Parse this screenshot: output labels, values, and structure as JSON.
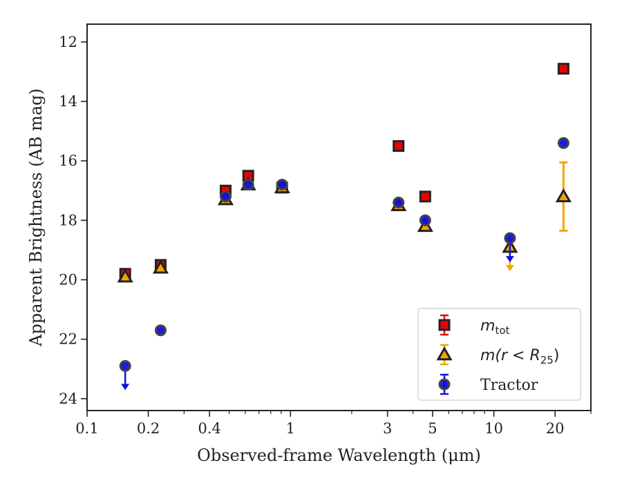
{
  "chart_data": {
    "type": "scatter",
    "xlabel": "Observed-frame Wavelength (μm)",
    "ylabel": "Apparent Brightness (AB mag)",
    "xscale": "log",
    "xlim": [
      0.1,
      30
    ],
    "ylim": [
      24.4,
      11.4
    ],
    "y_inverted": true,
    "grid": false,
    "legend_position": "lower-right",
    "x_ticks": [
      0.1,
      0.2,
      0.4,
      1,
      3,
      5,
      10,
      20
    ],
    "x_tick_labels": [
      "0.1",
      "0.2",
      "0.4",
      "1",
      "3",
      "5",
      "10",
      "20"
    ],
    "y_ticks": [
      12,
      14,
      16,
      18,
      20,
      22,
      24
    ],
    "y_tick_labels": [
      "12",
      "14",
      "16",
      "18",
      "20",
      "22",
      "24"
    ],
    "series": [
      {
        "name": "m_tot",
        "legend_main": "m",
        "legend_sub": "tot",
        "marker": "square",
        "color": "#ee0000",
        "edge": "#222222",
        "points": [
          {
            "x": 0.154,
            "y": 19.8
          },
          {
            "x": 0.23,
            "y": 19.5
          },
          {
            "x": 0.48,
            "y": 17.0
          },
          {
            "x": 0.62,
            "y": 16.5
          },
          {
            "x": 0.91,
            "y": 16.9
          },
          {
            "x": 3.4,
            "y": 15.5
          },
          {
            "x": 4.6,
            "y": 17.2
          },
          {
            "x": 22.0,
            "y": 12.9
          }
        ]
      },
      {
        "name": "m(r < R25)",
        "legend_main": "m(r < R",
        "legend_sub": "25",
        "legend_close": ")",
        "marker": "triangle",
        "color": "#f5a300",
        "edge": "#222222",
        "points": [
          {
            "x": 0.154,
            "y": 19.9
          },
          {
            "x": 0.23,
            "y": 19.6
          },
          {
            "x": 0.48,
            "y": 17.3
          },
          {
            "x": 0.62,
            "y": 16.8
          },
          {
            "x": 0.91,
            "y": 16.9
          },
          {
            "x": 3.4,
            "y": 17.5
          },
          {
            "x": 4.6,
            "y": 18.2
          },
          {
            "x": 12.0,
            "y": 18.9,
            "upper_limit": true
          },
          {
            "x": 22.0,
            "y": 17.2,
            "yerr": 1.15
          }
        ]
      },
      {
        "name": "Tractor",
        "marker": "circle",
        "color": "#1010dd",
        "edge": "#444444",
        "points": [
          {
            "x": 0.154,
            "y": 22.9,
            "upper_limit": true
          },
          {
            "x": 0.23,
            "y": 21.7
          },
          {
            "x": 0.48,
            "y": 17.2
          },
          {
            "x": 0.62,
            "y": 16.8
          },
          {
            "x": 0.91,
            "y": 16.8
          },
          {
            "x": 3.4,
            "y": 17.4
          },
          {
            "x": 4.6,
            "y": 18.0
          },
          {
            "x": 12.0,
            "y": 18.6,
            "upper_limit": true
          },
          {
            "x": 22.0,
            "y": 15.4
          }
        ]
      }
    ]
  }
}
